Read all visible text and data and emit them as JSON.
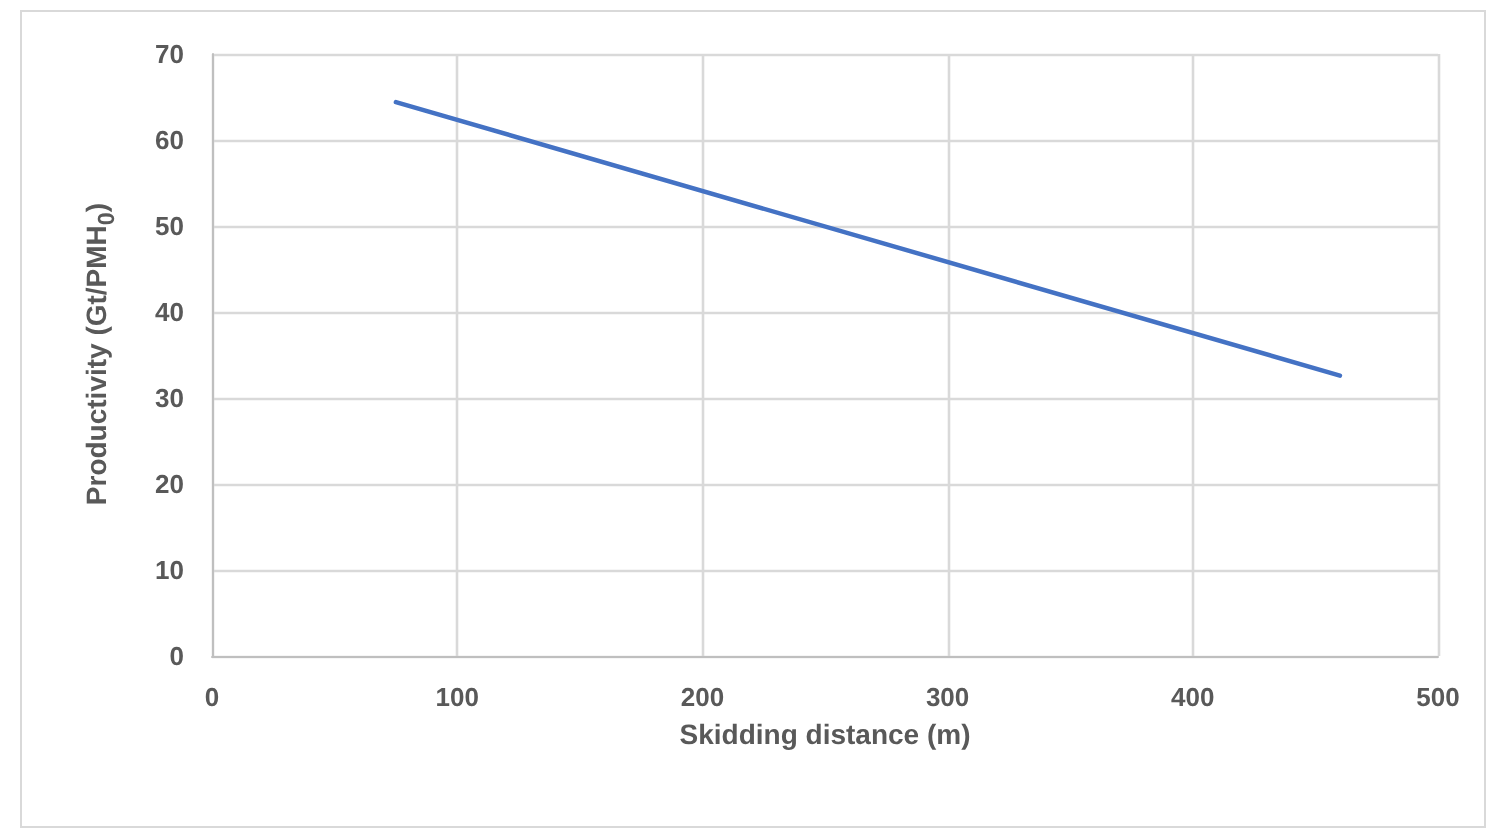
{
  "chart_data": {
    "type": "line",
    "xlabel": "Skidding distance (m)",
    "ylabel": "Productivity (Gt/PMH$_{0}$)",
    "series": [
      {
        "color": "#4472c4",
        "x": [
          75,
          460
        ],
        "values": [
          64.4,
          32.6
        ]
      }
    ],
    "xlim": [
      0,
      500
    ],
    "xticks": [
      0,
      100,
      200,
      300,
      400,
      500
    ],
    "ylim": [
      0,
      70
    ],
    "yticks": [
      0,
      10,
      20,
      30,
      40,
      50,
      60,
      70
    ],
    "grid": true,
    "marker": "none",
    "line_style": "solid"
  }
}
